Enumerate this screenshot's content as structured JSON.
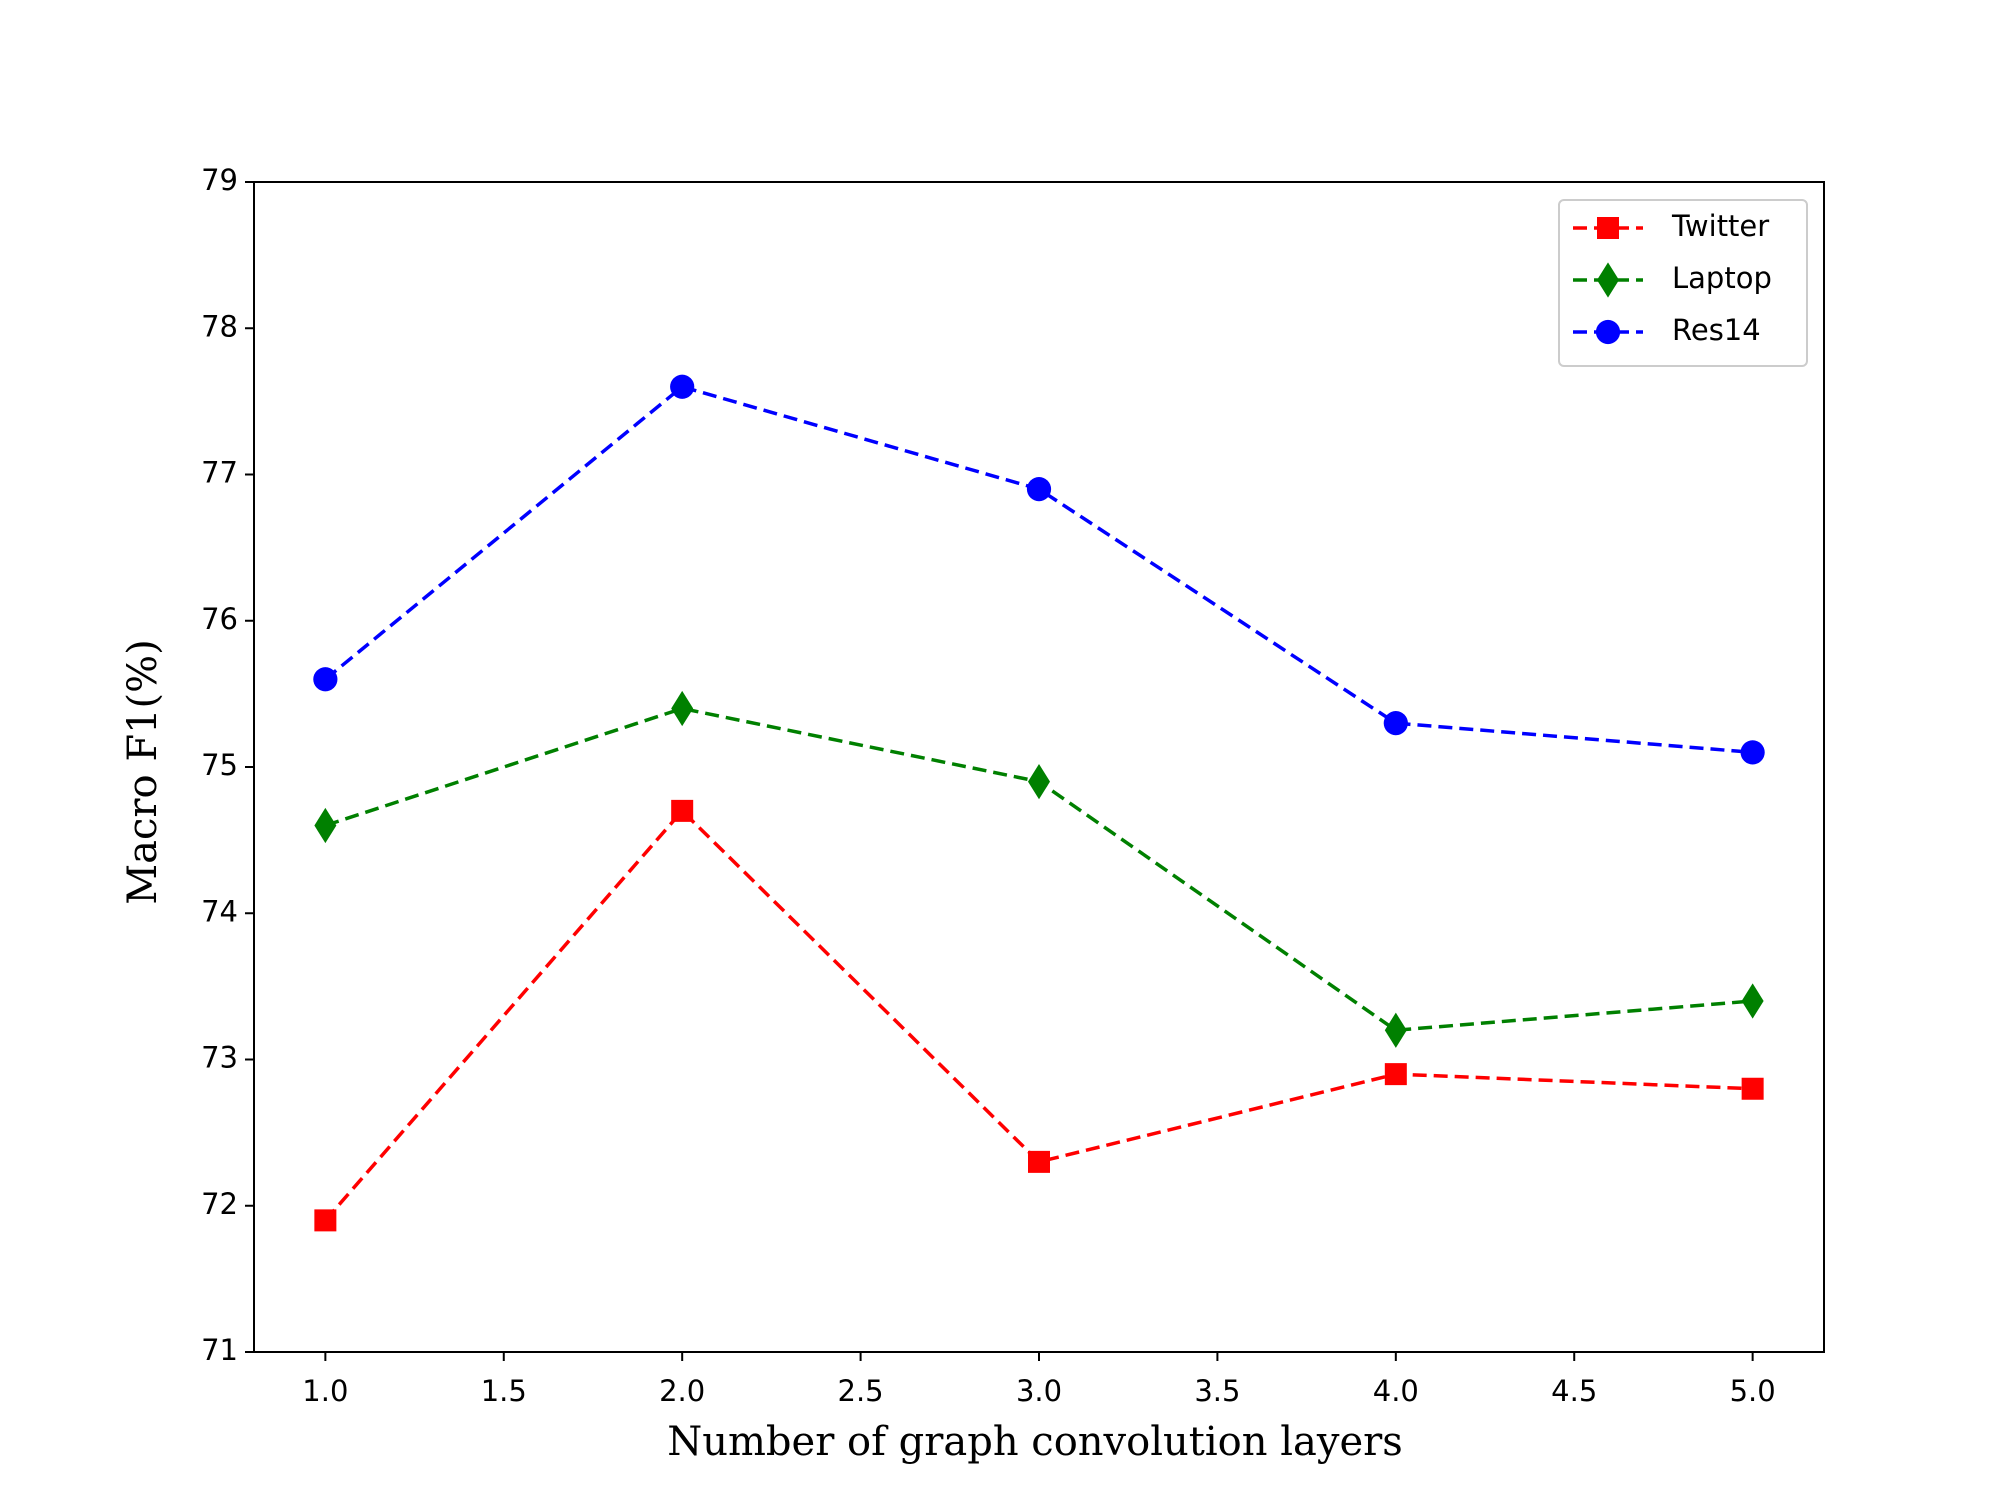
{
  "chart_data": {
    "type": "line",
    "x_label": "Number of graph convolution layers",
    "y_label": "Macro F1(%)",
    "x": [
      1.0,
      2.0,
      3.0,
      4.0,
      5.0
    ],
    "series": [
      {
        "name": "Twitter",
        "color": "#ff0000",
        "marker": "square",
        "values": [
          71.9,
          74.7,
          72.3,
          72.9,
          72.8
        ]
      },
      {
        "name": "Laptop",
        "color": "#008000",
        "marker": "diamond",
        "values": [
          74.6,
          75.4,
          74.9,
          73.2,
          73.4
        ]
      },
      {
        "name": "Res14",
        "color": "#0000ff",
        "marker": "circle",
        "values": [
          75.6,
          77.6,
          76.9,
          75.3,
          75.1
        ]
      }
    ],
    "linestyle": "dashed",
    "xlim": [
      0.8,
      5.2
    ],
    "ylim": [
      71,
      79
    ],
    "xticks": [
      {
        "value": 1.0,
        "label": "1.0"
      },
      {
        "value": 1.5,
        "label": "1.5"
      },
      {
        "value": 2.0,
        "label": "2.0"
      },
      {
        "value": 2.5,
        "label": "2.5"
      },
      {
        "value": 3.0,
        "label": "3.0"
      },
      {
        "value": 3.5,
        "label": "3.5"
      },
      {
        "value": 4.0,
        "label": "4.0"
      },
      {
        "value": 4.5,
        "label": "4.5"
      },
      {
        "value": 5.0,
        "label": "5.0"
      }
    ],
    "yticks": [
      71,
      72,
      73,
      74,
      75,
      76,
      77,
      78,
      79
    ],
    "grid": false,
    "legend": "upper right"
  }
}
